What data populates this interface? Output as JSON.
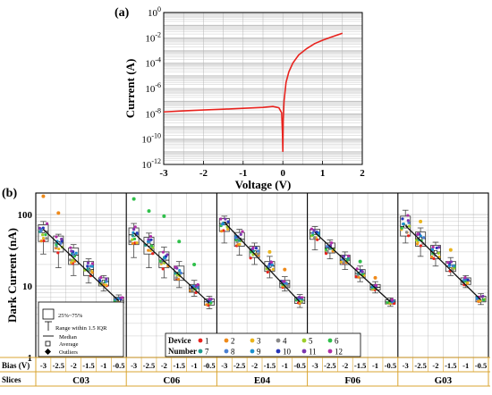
{
  "colors": {
    "iv_curve": "#e8231e",
    "box_stroke": "#444444",
    "fit_line": "#111111",
    "table_border": "#d9a431",
    "grid": "#b4b4b4",
    "device_colors": [
      "#e8231e",
      "#ef8a1a",
      "#e9b41b",
      "#8a8a8a",
      "#9ccd2a",
      "#2fc04a",
      "#1f9c8f",
      "#4a7fd1",
      "#1b90cf",
      "#2535b8",
      "#7a35b0",
      "#b02fa6"
    ]
  },
  "chart_data": [
    {
      "type": "line",
      "panel_label": "(a)",
      "xlabel": "Voltage (V)",
      "ylabel": "Current (A)",
      "xlim": [
        -3,
        2
      ],
      "ylim": [
        1e-12,
        1
      ],
      "y_scale": "log",
      "x_ticks": [
        "-3",
        "-2",
        "-1",
        "0",
        "1",
        "2"
      ],
      "y_ticks": [
        {
          "base": "10",
          "exp": "0"
        },
        {
          "base": "10",
          "exp": "-2"
        },
        {
          "base": "10",
          "exp": "-4"
        },
        {
          "base": "10",
          "exp": "-6"
        },
        {
          "base": "10",
          "exp": "-8"
        },
        {
          "base": "10",
          "exp": "-10"
        },
        {
          "base": "10",
          "exp": "-12"
        }
      ],
      "grid": true,
      "x": [
        -3,
        -2.5,
        -2,
        -1.5,
        -1,
        -0.5,
        -0.25,
        -0.1,
        -0.03,
        -0.01,
        0,
        0.01,
        0.03,
        0.08,
        0.15,
        0.25,
        0.4,
        0.6,
        0.8,
        1.0,
        1.2,
        1.5
      ],
      "y": [
        1.4e-08,
        1.7e-08,
        2e-08,
        2.3e-08,
        2.7e-08,
        3.2e-08,
        3.8e-08,
        3e-08,
        1.2e-08,
        3e-10,
        1e-11,
        3e-09,
        1e-07,
        3e-06,
        2e-05,
        0.0001,
        0.00045,
        0.0014,
        0.0035,
        0.0065,
        0.011,
        0.023
      ]
    },
    {
      "type": "box",
      "panel_label": "(b)",
      "ylabel": "Dark Current (nA)",
      "ylim": [
        1,
        200
      ],
      "y_scale": "log",
      "y_ticks": [
        "1",
        "10",
        "100"
      ],
      "grid": true,
      "bias_row_label": "Bias (V)",
      "slices_row_label": "Slices",
      "bias_values": [
        "-3",
        "-2.5",
        "-2",
        "-1.5",
        "-1",
        "-0.5"
      ],
      "bias_numeric": [
        -3,
        -2.5,
        -2,
        -1.5,
        -1,
        -0.5
      ],
      "legend_box": {
        "range_label": "25%~75%",
        "whisker_label": "Range within 1.5 IQR",
        "median_label": "Median",
        "average_label": "Average",
        "outlier_label": "Outliers",
        "placement": "bottom-left"
      },
      "device_legend": {
        "title_top": "Device",
        "title_bottom": "Number",
        "numbers": [
          "1",
          "2",
          "3",
          "4",
          "5",
          "6",
          "7",
          "8",
          "9",
          "10",
          "11",
          "12"
        ],
        "placement": "bottom-right"
      },
      "slices": [
        {
          "name": "C03",
          "boxes": [
            {
              "bias": -3,
              "min": 28,
              "q1": 42,
              "median": 58,
              "q3": 72,
              "max": 80
            },
            {
              "bias": -2.5,
              "min": 18,
              "q1": 30,
              "median": 40,
              "q3": 50,
              "max": 53
            },
            {
              "bias": -2,
              "min": 14,
              "q1": 20,
              "median": 27,
              "q3": 34,
              "max": 38
            },
            {
              "bias": -1.5,
              "min": 11,
              "q1": 14,
              "median": 17,
              "q3": 22,
              "max": 24
            },
            {
              "bias": -1,
              "min": 8.5,
              "q1": 10,
              "median": 11.5,
              "q3": 13,
              "max": 14
            },
            {
              "bias": -0.5,
              "min": 5.2,
              "q1": 5.8,
              "median": 6.3,
              "q3": 7,
              "max": 7.5
            }
          ],
          "outliers": [
            {
              "bias": -3,
              "value": 180,
              "device": 2
            },
            {
              "bias": -2.5,
              "value": 105,
              "device": 2
            }
          ],
          "fit": [
            62,
            6.2
          ]
        },
        {
          "name": "C06",
          "boxes": [
            {
              "bias": -3,
              "min": 25,
              "q1": 38,
              "median": 52,
              "q3": 65,
              "max": 75
            },
            {
              "bias": -2.5,
              "min": 18,
              "q1": 28,
              "median": 38,
              "q3": 48,
              "max": 55
            },
            {
              "bias": -2,
              "min": 13,
              "q1": 18,
              "median": 23,
              "q3": 30,
              "max": 35
            },
            {
              "bias": -1.5,
              "min": 9.5,
              "q1": 12,
              "median": 15,
              "q3": 19,
              "max": 22
            },
            {
              "bias": -1,
              "min": 7.2,
              "q1": 8.2,
              "median": 9.2,
              "q3": 10.5,
              "max": 12
            },
            {
              "bias": -0.5,
              "min": 4.8,
              "q1": 5.4,
              "median": 6,
              "q3": 6.6,
              "max": 7.2
            }
          ],
          "outliers": [
            {
              "bias": -3,
              "value": 165,
              "device": 6
            },
            {
              "bias": -2.5,
              "value": 112,
              "device": 6
            },
            {
              "bias": -2,
              "value": 95,
              "device": 6
            },
            {
              "bias": -1.5,
              "value": 42,
              "device": 6
            },
            {
              "bias": -1,
              "value": 20,
              "device": 6
            }
          ],
          "fit": [
            55,
            5.8
          ]
        },
        {
          "name": "E04",
          "boxes": [
            {
              "bias": -3,
              "min": 40,
              "q1": 58,
              "median": 75,
              "q3": 88,
              "max": 95
            },
            {
              "bias": -2.5,
              "min": 27,
              "q1": 36,
              "median": 45,
              "q3": 56,
              "max": 62
            },
            {
              "bias": -2,
              "min": 20,
              "q1": 25,
              "median": 30,
              "q3": 36,
              "max": 40
            },
            {
              "bias": -1.5,
              "min": 13,
              "q1": 16,
              "median": 19,
              "q3": 22,
              "max": 26
            },
            {
              "bias": -1,
              "min": 8.5,
              "q1": 9.5,
              "median": 10.8,
              "q3": 12,
              "max": 13.5
            },
            {
              "bias": -0.5,
              "min": 5,
              "q1": 5.7,
              "median": 6.3,
              "q3": 7,
              "max": 7.6
            }
          ],
          "outliers": [
            {
              "bias": -1.5,
              "value": 30,
              "device": 3
            },
            {
              "bias": -1,
              "value": 17,
              "device": 2
            }
          ],
          "fit": [
            78,
            6.0
          ]
        },
        {
          "name": "F06",
          "boxes": [
            {
              "bias": -3,
              "min": 32,
              "q1": 45,
              "median": 55,
              "q3": 62,
              "max": 68
            },
            {
              "bias": -2.5,
              "min": 24,
              "q1": 29,
              "median": 34,
              "q3": 40,
              "max": 44
            },
            {
              "bias": -2,
              "min": 17,
              "q1": 20,
              "median": 23,
              "q3": 27,
              "max": 30
            },
            {
              "bias": -1.5,
              "min": 11.5,
              "q1": 13,
              "median": 15,
              "q3": 17,
              "max": 19
            },
            {
              "bias": -1,
              "min": 8,
              "q1": 8.8,
              "median": 9.6,
              "q3": 10.5,
              "max": 11.5
            },
            {
              "bias": -0.5,
              "min": 5.2,
              "q1": 5.6,
              "median": 6,
              "q3": 6.4,
              "max": 6.8
            }
          ],
          "outliers": [
            {
              "bias": -1.5,
              "value": 22,
              "device": 6
            },
            {
              "bias": -1,
              "value": 13,
              "device": 2
            }
          ],
          "fit": [
            56,
            6.0
          ]
        },
        {
          "name": "G03",
          "boxes": [
            {
              "bias": -3,
              "min": 40,
              "q1": 50,
              "median": 68,
              "q3": 95,
              "max": 115
            },
            {
              "bias": -2.5,
              "min": 26,
              "q1": 36,
              "median": 46,
              "q3": 57,
              "max": 65
            },
            {
              "bias": -2,
              "min": 19,
              "q1": 24,
              "median": 30,
              "q3": 37,
              "max": 41
            },
            {
              "bias": -1.5,
              "min": 14,
              "q1": 16,
              "median": 19,
              "q3": 22,
              "max": 25
            },
            {
              "bias": -1,
              "min": 9.5,
              "q1": 10.5,
              "median": 11.8,
              "q3": 13,
              "max": 14
            },
            {
              "bias": -0.5,
              "min": 5.5,
              "q1": 6,
              "median": 6.6,
              "q3": 7.2,
              "max": 7.8
            }
          ],
          "outliers": [
            {
              "bias": -2.5,
              "value": 80,
              "device": 3
            },
            {
              "bias": -1.5,
              "value": 32,
              "device": 3
            }
          ],
          "fit": [
            70,
            6.4
          ]
        }
      ]
    }
  ]
}
